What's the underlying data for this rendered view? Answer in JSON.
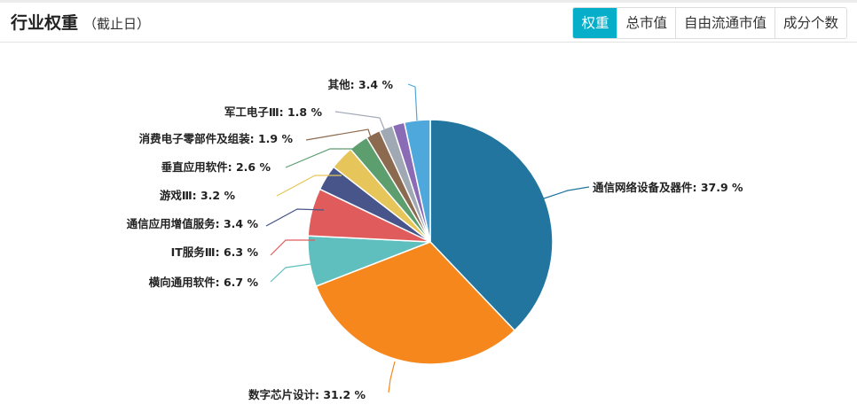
{
  "header": {
    "title": "行业权重",
    "subtitle": "（截止日）"
  },
  "tabs": [
    {
      "label": "权重",
      "active": true
    },
    {
      "label": "总市值"
    },
    {
      "label": "自由流通市值"
    },
    {
      "label": "成分个数"
    }
  ],
  "chart_data": {
    "type": "pie",
    "unit": "%",
    "start": "top, clockwise",
    "slices": [
      {
        "label": "通信网络设备及器件",
        "value": 37.9,
        "color": "#21759f"
      },
      {
        "label": "数字芯片设计",
        "value": 31.2,
        "color": "#f5871c"
      },
      {
        "label": "横向通用软件",
        "value": 6.7,
        "color": "#5fbfbf"
      },
      {
        "label": "IT服务Ⅲ",
        "value": 6.3,
        "color": "#e05c5c"
      },
      {
        "label": "通信应用增值服务",
        "value": 3.4,
        "color": "#47558a"
      },
      {
        "label": "游戏Ⅲ",
        "value": 3.2,
        "color": "#e6c65a"
      },
      {
        "label": "垂直应用软件",
        "value": 2.6,
        "color": "#5c9e6e"
      },
      {
        "label": "消费电子零部件及组装",
        "value": 1.9,
        "color": "#8c6a4f"
      },
      {
        "label": "军工电子Ⅲ",
        "value": 1.8,
        "color": "#9fa8b3"
      },
      {
        "label": "",
        "value": 1.6,
        "color": "#8a6bb5"
      },
      {
        "label": "其他",
        "value": 3.4,
        "color": "#4fa8db"
      }
    ]
  }
}
